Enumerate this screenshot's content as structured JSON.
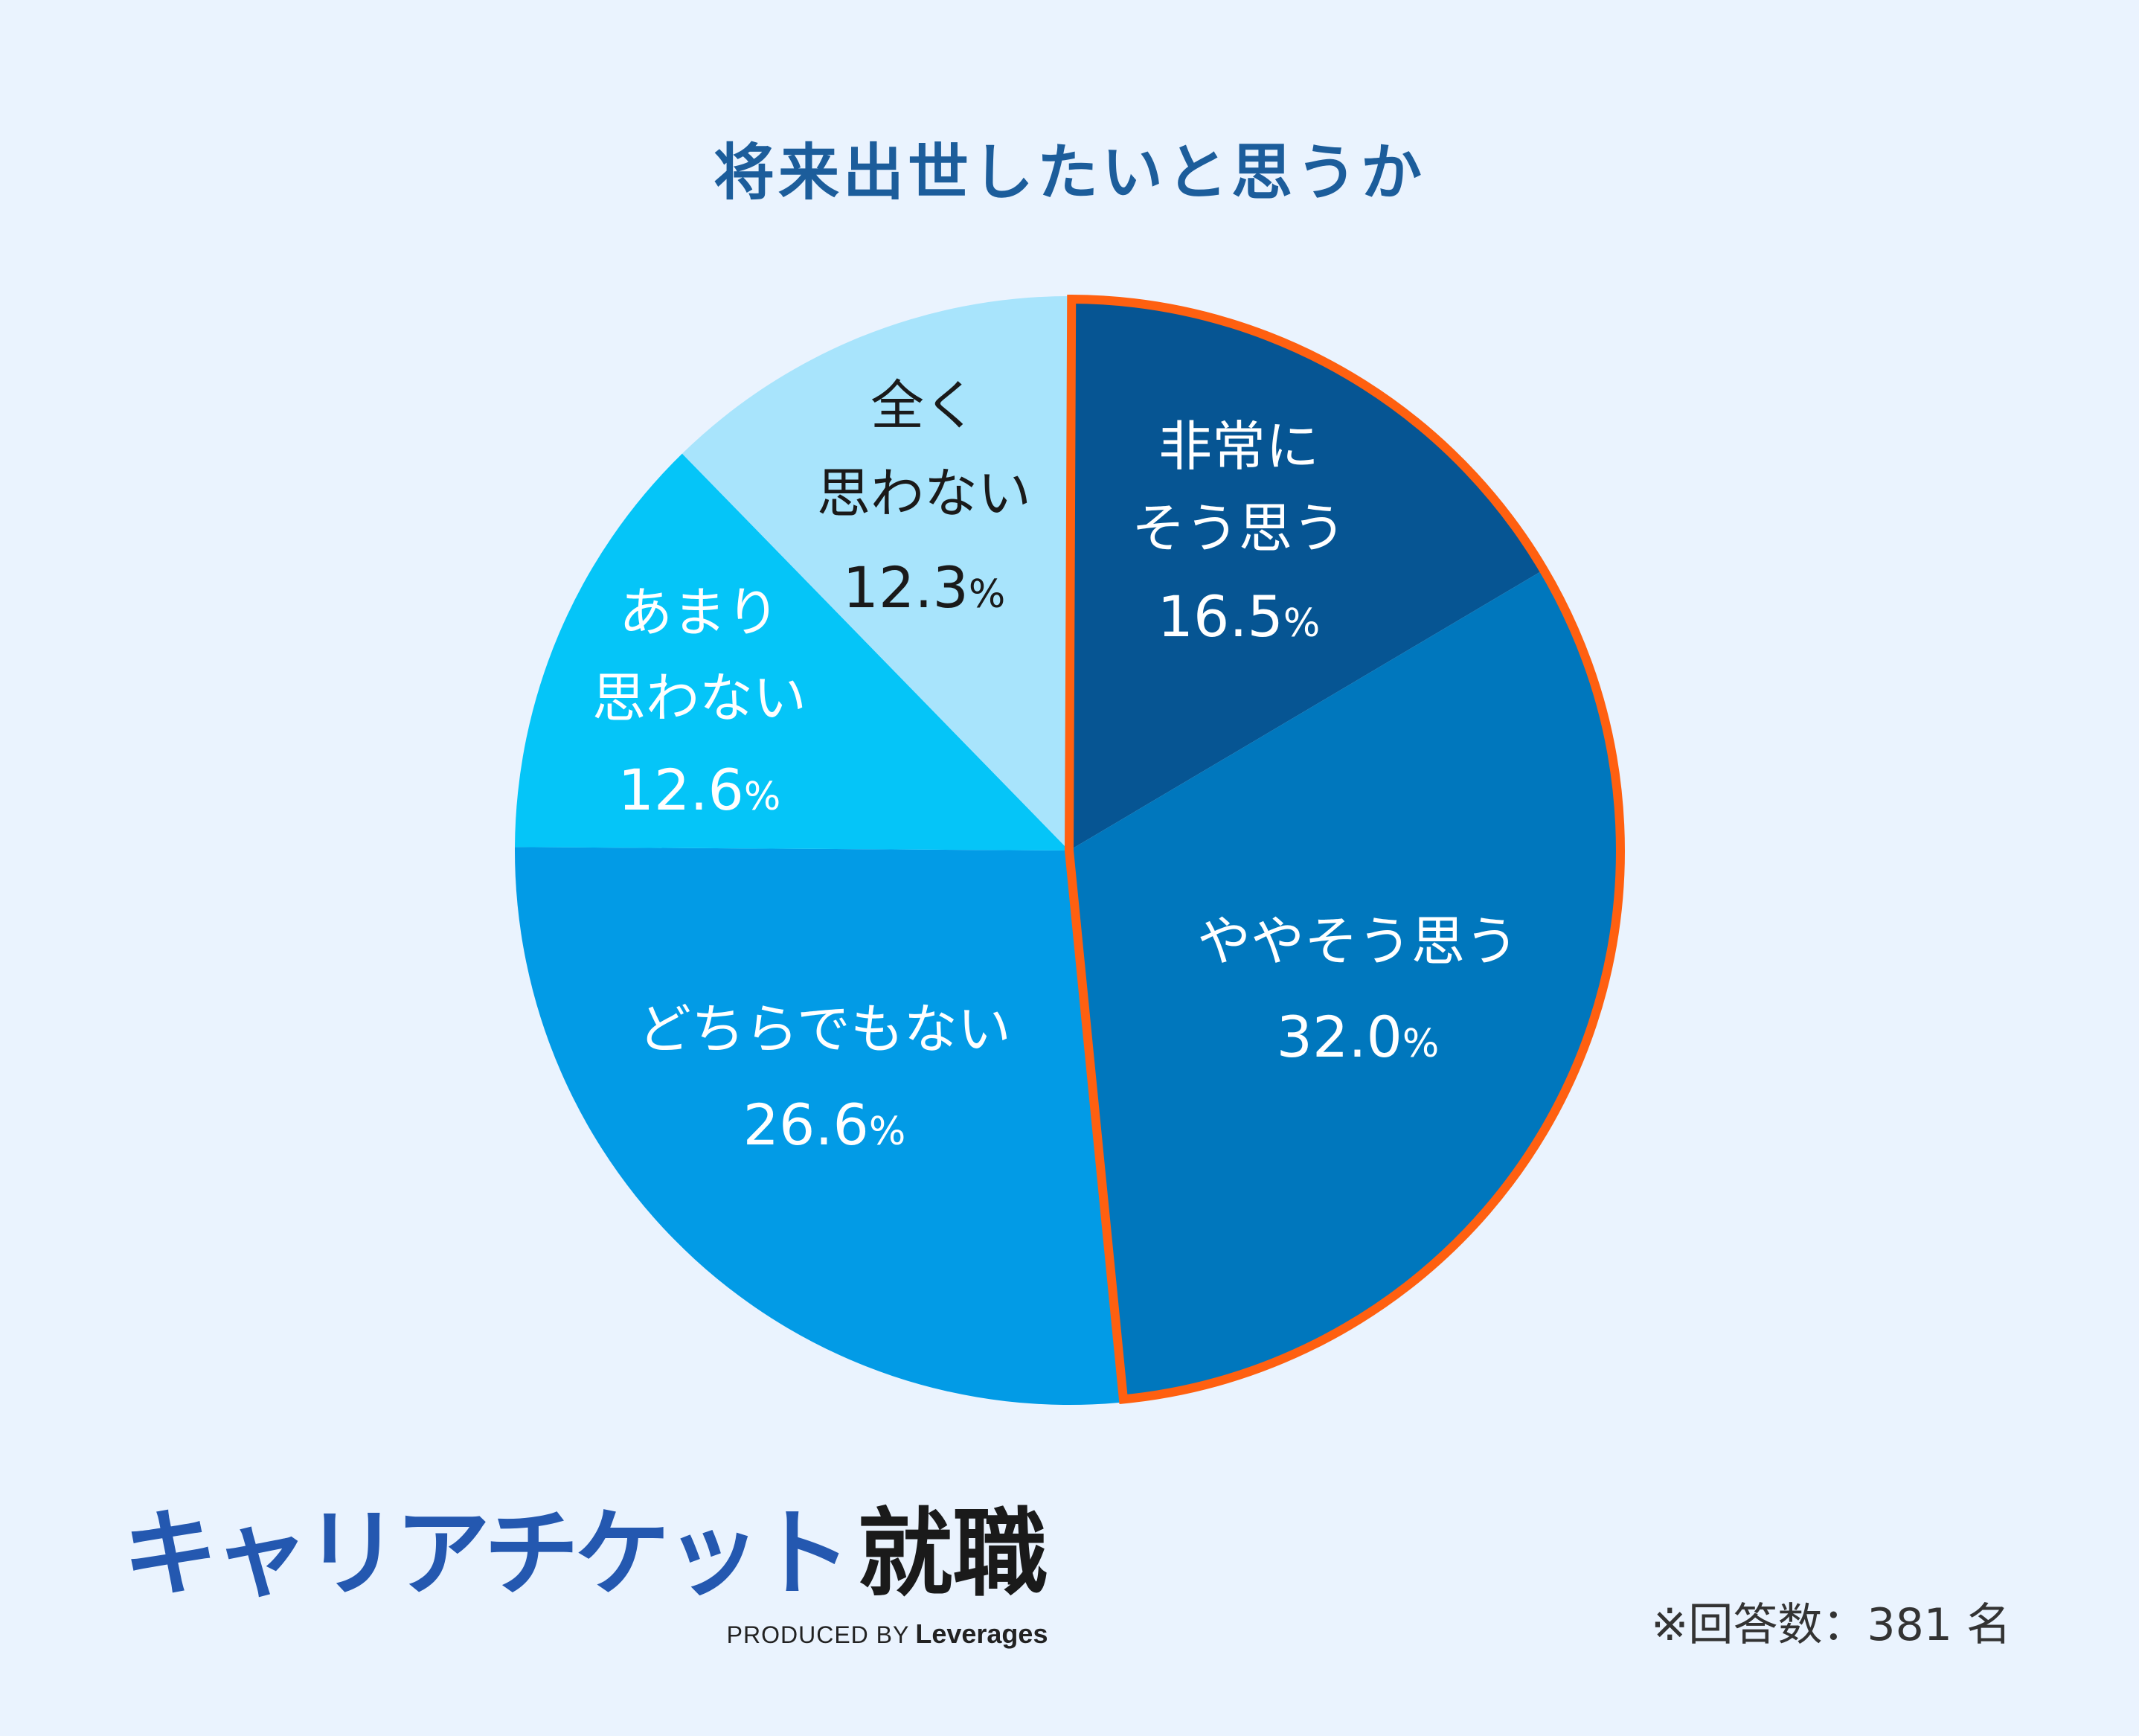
{
  "chart_data": {
    "type": "pie",
    "title": "将来出世したいと思うか",
    "highlight_color": "#ff6010",
    "highlighted_slices": [
      "非常にそう思う",
      "ややそう思う"
    ],
    "slices": [
      {
        "label_lines": [
          "非常に",
          "そう思う"
        ],
        "value": 16.5,
        "value_text": "16.5",
        "unit": "%",
        "color": "#065593",
        "text_color": "#ffffff"
      },
      {
        "label_lines": [
          "ややそう思う"
        ],
        "value": 32.0,
        "value_text": "32.0",
        "unit": "%",
        "color": "#0077bd",
        "text_color": "#ffffff"
      },
      {
        "label_lines": [
          "どちらでもない"
        ],
        "value": 26.6,
        "value_text": "26.6",
        "unit": "%",
        "color": "#029be6",
        "text_color": "#ffffff"
      },
      {
        "label_lines": [
          "あまり",
          "思わない"
        ],
        "value": 12.6,
        "value_text": "12.6",
        "unit": "%",
        "color": "#05c5f8",
        "text_color": "#ffffff"
      },
      {
        "label_lines": [
          "全く",
          "思わない"
        ],
        "value": 12.3,
        "value_text": "12.3",
        "unit": "%",
        "color": "#a8e4fc",
        "text_color": "#1a1a1a"
      }
    ]
  },
  "logo": {
    "katakana": "キャリアチケット",
    "kanji": "就職",
    "produced_by": "PRODUCED BY",
    "brand": "Leverages"
  },
  "footnote": "※回答数：381 名"
}
